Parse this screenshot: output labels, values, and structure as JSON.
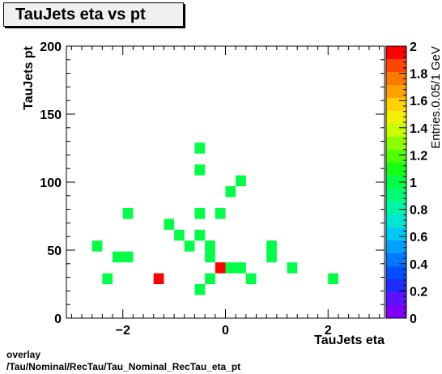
{
  "chart_data": {
    "type": "heatmap",
    "title": "TauJets eta vs pt",
    "xlabel": "TauJets eta",
    "ylabel": "TauJets pt",
    "zlabel": "Entries.0.05/1 GeV",
    "xlim": [
      -3.1,
      3.1
    ],
    "ylim": [
      0,
      200
    ],
    "zlim": [
      0,
      2
    ],
    "x_ticks": [
      -2,
      0,
      2
    ],
    "x_tick_labels": [
      "−2",
      "0",
      "2"
    ],
    "y_ticks": [
      0,
      50,
      100,
      150,
      200
    ],
    "y_tick_labels": [
      "0",
      "50",
      "100",
      "150",
      "200"
    ],
    "z_ticks": [
      0,
      0.2,
      0.4,
      0.6,
      0.8,
      1,
      1.2,
      1.4,
      1.6,
      1.8,
      2
    ],
    "z_tick_labels": [
      "0",
      "0.2",
      "0.4",
      "0.6",
      "0.8",
      "1",
      "1.2",
      "1.4",
      "1.6",
      "1.8",
      "2"
    ],
    "bin_width_x": 0.2,
    "bin_width_y": 8,
    "cells": [
      {
        "x": -0.5,
        "y": 125,
        "z": 1
      },
      {
        "x": -0.5,
        "y": 109,
        "z": 1
      },
      {
        "x": 0.3,
        "y": 101,
        "z": 1
      },
      {
        "x": 0.1,
        "y": 93,
        "z": 1
      },
      {
        "x": -1.9,
        "y": 77,
        "z": 1
      },
      {
        "x": -0.5,
        "y": 77,
        "z": 1
      },
      {
        "x": -0.1,
        "y": 77,
        "z": 1
      },
      {
        "x": -1.1,
        "y": 69,
        "z": 1
      },
      {
        "x": -0.9,
        "y": 61,
        "z": 1
      },
      {
        "x": -0.5,
        "y": 61,
        "z": 1
      },
      {
        "x": -2.5,
        "y": 53,
        "z": 1
      },
      {
        "x": -0.7,
        "y": 53,
        "z": 1
      },
      {
        "x": -0.3,
        "y": 53,
        "z": 1
      },
      {
        "x": 0.9,
        "y": 53,
        "z": 1
      },
      {
        "x": -2.1,
        "y": 45,
        "z": 1
      },
      {
        "x": -1.9,
        "y": 45,
        "z": 1
      },
      {
        "x": -0.3,
        "y": 45,
        "z": 1
      },
      {
        "x": 0.9,
        "y": 45,
        "z": 1
      },
      {
        "x": -0.1,
        "y": 37,
        "z": 2
      },
      {
        "x": 0.1,
        "y": 37,
        "z": 1
      },
      {
        "x": 0.3,
        "y": 37,
        "z": 1
      },
      {
        "x": 1.3,
        "y": 37,
        "z": 1
      },
      {
        "x": -2.3,
        "y": 29,
        "z": 1
      },
      {
        "x": -1.3,
        "y": 29,
        "z": 2
      },
      {
        "x": -0.3,
        "y": 29,
        "z": 1
      },
      {
        "x": 0.5,
        "y": 29,
        "z": 1
      },
      {
        "x": 2.1,
        "y": 29,
        "z": 1
      },
      {
        "x": -0.5,
        "y": 21,
        "z": 1
      }
    ],
    "palette": [
      "#7f00ff",
      "#5a14ff",
      "#1e2dff",
      "#0050ff",
      "#0078ff",
      "#00a0ff",
      "#00c8f5",
      "#00e6d2",
      "#00f5a5",
      "#00fa78",
      "#00ff46",
      "#14ff14",
      "#50ff00",
      "#8cff00",
      "#c8ff00",
      "#f0f000",
      "#ffd200",
      "#ffa000",
      "#ff7800",
      "#ff4600",
      "#ff0000"
    ]
  },
  "footer": {
    "line1": "overlay",
    "line2": "/Tau/Nominal/RecTau/Tau_Nominal_RecTau_eta_pt"
  }
}
